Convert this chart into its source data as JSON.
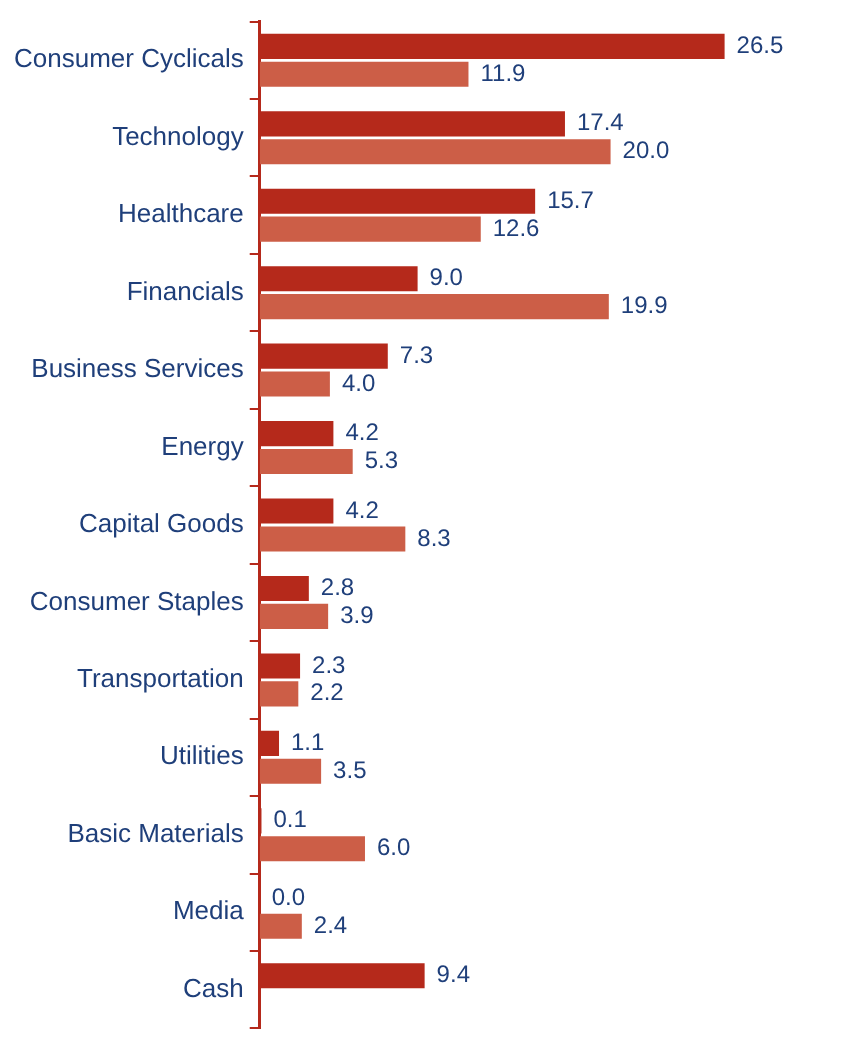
{
  "chart_data": {
    "type": "bar",
    "orientation": "horizontal",
    "categories": [
      "Consumer Cyclicals",
      "Technology",
      "Healthcare",
      "Financials",
      "Business Services",
      "Energy",
      "Capital Goods",
      "Consumer Staples",
      "Transportation",
      "Utilities",
      "Basic Materials",
      "Media",
      "Cash"
    ],
    "series": [
      {
        "color": "#b5291b",
        "values": [
          26.5,
          17.4,
          15.7,
          9,
          7.3,
          4.2,
          4.2,
          2.8,
          2.3,
          1.1,
          0.1,
          0,
          9.4
        ],
        "value_labels": [
          "26.5",
          "17.4",
          "15.7",
          "9.0",
          "7.3",
          "4.2",
          "4.2",
          "2.8",
          "2.3",
          "1.1",
          "0.1",
          "0.0",
          "9.4"
        ]
      },
      {
        "color": "#cc5e47",
        "values": [
          11.9,
          20,
          12.6,
          19.9,
          4,
          5.3,
          8.3,
          3.9,
          2.2,
          3.5,
          6,
          2.4,
          null
        ],
        "value_labels": [
          "11.9",
          "20.0",
          "12.6",
          "19.9",
          "4.0",
          "5.3",
          "8.3",
          "3.9",
          "2.2",
          "3.5",
          "6.0",
          "2.4",
          null
        ]
      }
    ],
    "grid": false,
    "legend": false,
    "tick_labels": "y"
  }
}
